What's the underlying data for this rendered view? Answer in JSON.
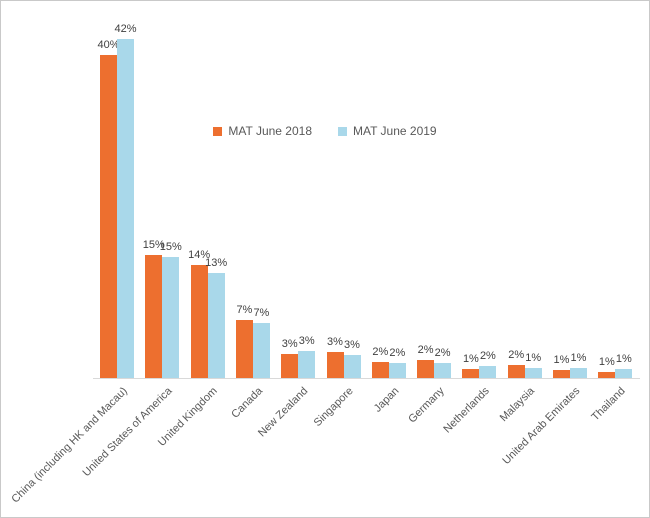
{
  "frame": {
    "background": "#ffffff",
    "border_color": "#c9c9c9"
  },
  "legend": {
    "items": [
      {
        "label": "MAT June 2018",
        "color": "#ed6f2f"
      },
      {
        "label": "MAT June 2019",
        "color": "#a9d8ea"
      }
    ]
  },
  "chart_data": {
    "type": "bar",
    "title": "",
    "xlabel": "",
    "ylabel": "",
    "ylim": [
      0,
      45
    ],
    "grid": false,
    "legend_position": "top-center",
    "axis_line_color": "#d9d9d9",
    "data_label_color": "#404040",
    "category_label_color": "#595959",
    "categories": [
      "China (including HK and Macau)",
      "United States of America",
      "United Kingdom",
      "Canada",
      "New Zealand",
      "Singapore",
      "Japan",
      "Germany",
      "Netherlands",
      "Malaysia",
      "United Arab Emirates",
      "Thailand"
    ],
    "series": [
      {
        "name": "MAT June 2018",
        "color": "#ed6f2f",
        "values": [
          40,
          15.3,
          14,
          7.2,
          3.0,
          3.2,
          2.0,
          2.2,
          1.1,
          1.6,
          1.0,
          0.7
        ],
        "labels": [
          "40%",
          "15%",
          "14%",
          "7%",
          "3%",
          "3%",
          "2%",
          "2%",
          "1%",
          "2%",
          "1%",
          "1%"
        ]
      },
      {
        "name": "MAT June 2019",
        "color": "#a9d8ea",
        "values": [
          42,
          15.0,
          13,
          6.8,
          3.3,
          2.9,
          1.8,
          1.8,
          1.5,
          1.3,
          1.2,
          1.1
        ],
        "labels": [
          "42%",
          "15%",
          "13%",
          "7%",
          "3%",
          "3%",
          "2%",
          "2%",
          "2%",
          "1%",
          "1%",
          "1%"
        ]
      }
    ]
  }
}
